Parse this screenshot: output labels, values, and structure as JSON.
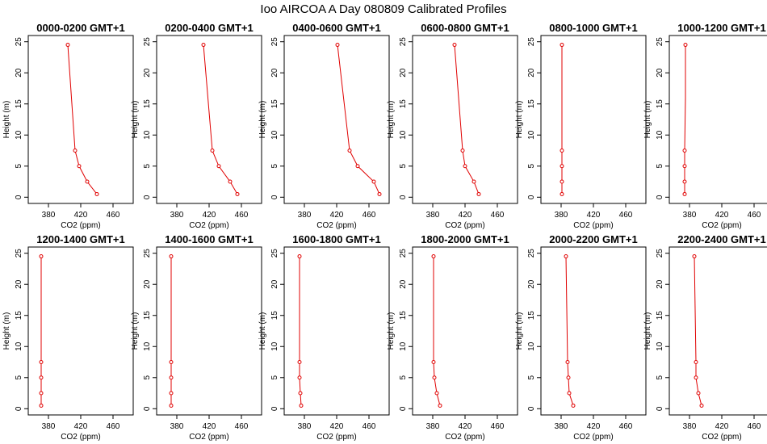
{
  "figure": {
    "title": "Ioo AIRCOA A  Day 080809  Calibrated Profiles"
  },
  "chart_data": {
    "type": "line",
    "orientation": "profile (x = CO2, y = height)",
    "xlabel": "CO2 (ppm)",
    "ylabel": "Height (m)",
    "xlim": [
      355,
      485
    ],
    "ylim": [
      -1,
      26
    ],
    "xticks": [
      380,
      420,
      460
    ],
    "yticks": [
      0,
      5,
      10,
      15,
      20,
      25
    ],
    "line_color": "#e00000",
    "grid": false,
    "panels": [
      {
        "title": "0000-0200 GMT+1",
        "points": [
          {
            "x": 404,
            "y": 24.5
          },
          {
            "x": 413,
            "y": 7.5
          },
          {
            "x": 418,
            "y": 5.0
          },
          {
            "x": 428,
            "y": 2.5
          },
          {
            "x": 440,
            "y": 0.5
          }
        ]
      },
      {
        "title": "0200-0400 GMT+1",
        "points": [
          {
            "x": 413,
            "y": 24.5
          },
          {
            "x": 424,
            "y": 7.5
          },
          {
            "x": 432,
            "y": 5.0
          },
          {
            "x": 446,
            "y": 2.5
          },
          {
            "x": 455,
            "y": 0.5
          }
        ]
      },
      {
        "title": "0400-0600 GMT+1",
        "points": [
          {
            "x": 421,
            "y": 24.5
          },
          {
            "x": 436,
            "y": 7.5
          },
          {
            "x": 446,
            "y": 5.0
          },
          {
            "x": 466,
            "y": 2.5
          },
          {
            "x": 473,
            "y": 0.5
          }
        ]
      },
      {
        "title": "0600-0800 GMT+1",
        "points": [
          {
            "x": 407,
            "y": 24.5
          },
          {
            "x": 417,
            "y": 7.5
          },
          {
            "x": 420,
            "y": 5.0
          },
          {
            "x": 431,
            "y": 2.5
          },
          {
            "x": 437,
            "y": 0.5
          }
        ]
      },
      {
        "title": "0800-1000 GMT+1",
        "points": [
          {
            "x": 381,
            "y": 24.5
          },
          {
            "x": 381,
            "y": 7.5
          },
          {
            "x": 381,
            "y": 5.0
          },
          {
            "x": 381,
            "y": 2.5
          },
          {
            "x": 381,
            "y": 0.5
          }
        ]
      },
      {
        "title": "1000-1200 GMT+1",
        "points": [
          {
            "x": 375,
            "y": 24.5
          },
          {
            "x": 375,
            "y": 16.0
          },
          {
            "x": 374,
            "y": 7.5
          },
          {
            "x": 374,
            "y": 5.0
          },
          {
            "x": 374,
            "y": 2.5
          },
          {
            "x": 374,
            "y": 0.5
          }
        ]
      },
      {
        "title": "1200-1400 GMT+1",
        "points": [
          {
            "x": 371,
            "y": 24.5
          },
          {
            "x": 371,
            "y": 7.5
          },
          {
            "x": 371,
            "y": 5.0
          },
          {
            "x": 371,
            "y": 2.5
          },
          {
            "x": 371,
            "y": 0.5
          }
        ]
      },
      {
        "title": "1400-1600 GMT+1",
        "points": [
          {
            "x": 373,
            "y": 24.5
          },
          {
            "x": 373,
            "y": 7.5
          },
          {
            "x": 373,
            "y": 5.0
          },
          {
            "x": 373,
            "y": 2.5
          },
          {
            "x": 373,
            "y": 0.5
          }
        ]
      },
      {
        "title": "1600-1800 GMT+1",
        "points": [
          {
            "x": 374,
            "y": 24.5
          },
          {
            "x": 374,
            "y": 7.5
          },
          {
            "x": 374,
            "y": 5.0
          },
          {
            "x": 375,
            "y": 2.5
          },
          {
            "x": 376,
            "y": 0.5
          }
        ]
      },
      {
        "title": "1800-2000 GMT+1",
        "points": [
          {
            "x": 381,
            "y": 24.5
          },
          {
            "x": 381,
            "y": 7.5
          },
          {
            "x": 382,
            "y": 5.0
          },
          {
            "x": 385,
            "y": 2.5
          },
          {
            "x": 389,
            "y": 0.5
          }
        ]
      },
      {
        "title": "2000-2200 GMT+1",
        "points": [
          {
            "x": 386,
            "y": 24.5
          },
          {
            "x": 387,
            "y": 16.0
          },
          {
            "x": 388,
            "y": 7.5
          },
          {
            "x": 389,
            "y": 5.0
          },
          {
            "x": 390,
            "y": 2.5
          },
          {
            "x": 395,
            "y": 0.5
          }
        ]
      },
      {
        "title": "2200-2400 GMT+1",
        "points": [
          {
            "x": 386,
            "y": 24.5
          },
          {
            "x": 387,
            "y": 16.0
          },
          {
            "x": 388,
            "y": 7.5
          },
          {
            "x": 388,
            "y": 5.0
          },
          {
            "x": 391,
            "y": 2.5
          },
          {
            "x": 395,
            "y": 0.5
          }
        ]
      }
    ]
  }
}
